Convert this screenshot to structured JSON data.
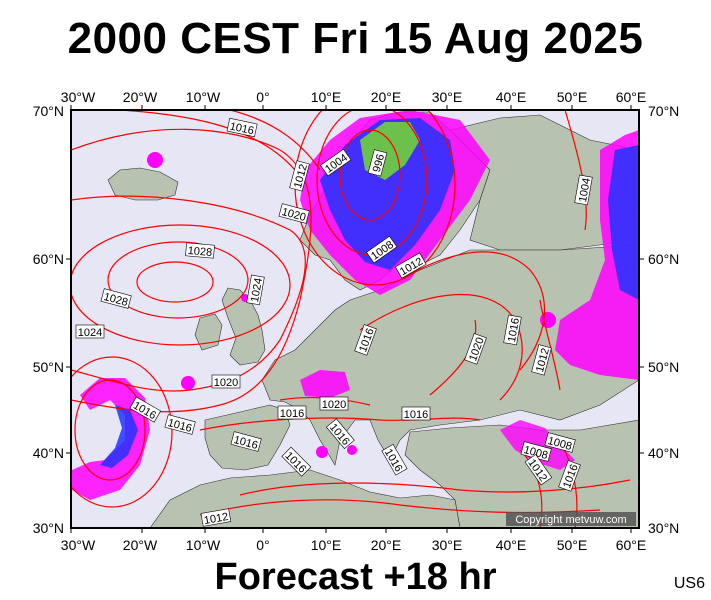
{
  "title": "2000 CEST Fri 15 Aug 2025",
  "subtitle": "Forecast +18 hr",
  "code": "US6",
  "copyright": "Copyright metvuw.com",
  "axes": {
    "top": [
      "30°W",
      "20°W",
      "10°W",
      "0°",
      "10°E",
      "20°E",
      "30°E",
      "40°E",
      "50°E",
      "60°E"
    ],
    "bottom": [
      "30°W",
      "20°W",
      "10°W",
      "0°",
      "10°E",
      "20°E",
      "30°E",
      "40°E",
      "50°E",
      "60°E"
    ],
    "left": [
      "70°N",
      "60°N",
      "50°N",
      "40°N",
      "30°N"
    ],
    "right": [
      "70°N",
      "60°N",
      "50°N",
      "40°N",
      "30°N"
    ]
  },
  "isobar_labels": [
    "1016",
    "1004",
    "996",
    "1012",
    "1020",
    "1028",
    "1028",
    "1024",
    "1024",
    "1008",
    "1012",
    "1016",
    "1020",
    "1016",
    "1012",
    "1020",
    "1016",
    "1016",
    "1016",
    "1020",
    "1016",
    "1016",
    "1016",
    "1016",
    "1016",
    "1012",
    "1008",
    "1012",
    "1016",
    "1008",
    "1004"
  ],
  "colors": {
    "ocean": "#e6e6f5",
    "land": "#b8c2b0",
    "isobar": "#ff0000",
    "rain_magenta": "#ff00ff",
    "rain_blue": "#2233ff"
  }
}
